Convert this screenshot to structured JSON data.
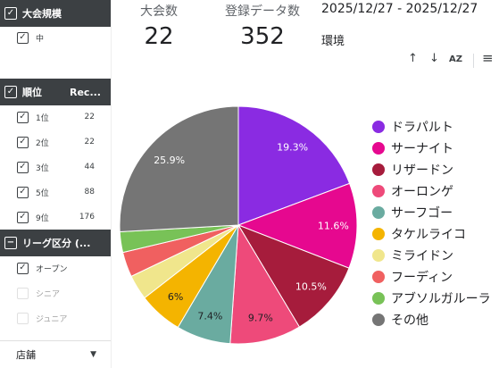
{
  "sidebar": {
    "groups": [
      {
        "header": "大会規模",
        "header_col": "",
        "checked": true,
        "items": [
          {
            "label": "中",
            "value": "",
            "checked": true
          }
        ]
      },
      {
        "header": "順位",
        "header_col": "Rec...",
        "checked": true,
        "items": [
          {
            "label": "1位",
            "value": "22",
            "checked": true
          },
          {
            "label": "2位",
            "value": "22",
            "checked": true
          },
          {
            "label": "3位",
            "value": "44",
            "checked": true
          },
          {
            "label": "5位",
            "value": "88",
            "checked": true
          },
          {
            "label": "9位",
            "value": "176",
            "checked": true
          }
        ]
      },
      {
        "header": "リーグ区分 (...",
        "header_col": "",
        "checked": "partial",
        "items": [
          {
            "label": "オープン",
            "value": "",
            "checked": true
          },
          {
            "label": "シニア",
            "value": "",
            "checked": false
          },
          {
            "label": "ジュニア",
            "value": "",
            "checked": false
          }
        ]
      }
    ],
    "dropdown": {
      "label": "店舗"
    }
  },
  "scorecards": [
    {
      "label": "大会数",
      "value": "22"
    },
    {
      "label": "登録データ数",
      "value": "352"
    }
  ],
  "date_range": "2025/12/27 - 2025/12/27",
  "environment_label": "環境",
  "toolbar": {
    "sort_up_icon": "↑",
    "sort_down_icon": "↓",
    "az_icon": "AZ",
    "filter_icon": "≡"
  },
  "colors": {
    "header_bg": "#3c4043",
    "accent": "#3c4043"
  },
  "chart_data": {
    "type": "pie",
    "legend_position": "right",
    "slices": [
      {
        "label": "ドラパルト",
        "value": 19.3,
        "display": "19.3%",
        "color": "#8a2be2",
        "label_color": "#ffffff"
      },
      {
        "label": "サーナイト",
        "value": 11.6,
        "display": "11.6%",
        "color": "#e6088f",
        "label_color": "#ffffff"
      },
      {
        "label": "リザードン",
        "value": 10.5,
        "display": "10.5%",
        "color": "#a61c3c",
        "label_color": "#ffffff"
      },
      {
        "label": "オーロンゲ",
        "value": 9.7,
        "display": "9.7%",
        "color": "#ee4a7a",
        "label_color": "#202124"
      },
      {
        "label": "サーフゴー",
        "value": 7.4,
        "display": "7.4%",
        "color": "#6aaba0",
        "label_color": "#202124"
      },
      {
        "label": "タケルライコ",
        "value": 6.0,
        "display": "6%",
        "color": "#f4b400",
        "label_color": "#202124"
      },
      {
        "label": "ミライドン",
        "value": 3.4,
        "display": "",
        "color": "#f0e68c",
        "label_color": "#202124"
      },
      {
        "label": "フーディン",
        "value": 3.4,
        "display": "",
        "color": "#f06060",
        "label_color": "#202124"
      },
      {
        "label": "アブソルガルーラ",
        "value": 2.8,
        "display": "",
        "color": "#78c257",
        "label_color": "#202124"
      },
      {
        "label": "その他",
        "value": 25.9,
        "display": "25.9%",
        "color": "#757575",
        "label_color": "#ffffff"
      }
    ]
  }
}
